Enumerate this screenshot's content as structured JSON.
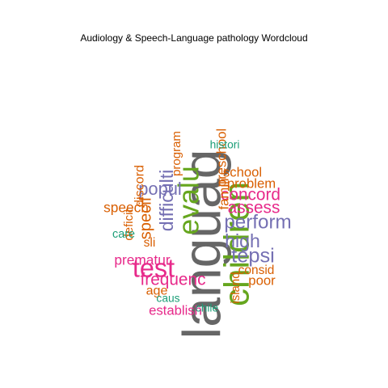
{
  "title": "Audiology & Speech-Language pathology  Wordcloud",
  "colors": {
    "grey": "#666666",
    "green": "#66a61e",
    "magenta": "#e7298a",
    "purple": "#7570b3",
    "orange": "#d95f02",
    "teal": "#1b9e77"
  },
  "chart_data": {
    "type": "wordcloud",
    "title": "Audiology & Speech-Language pathology  Wordcloud",
    "words": [
      {
        "text": "languag",
        "weight": 1.0,
        "color": "grey"
      },
      {
        "text": "children",
        "weight": 0.62,
        "color": "green"
      },
      {
        "text": "evalu",
        "weight": 0.48,
        "color": "green"
      },
      {
        "text": "test",
        "weight": 0.42,
        "color": "magenta"
      },
      {
        "text": "tepsi",
        "weight": 0.3,
        "color": "purple"
      },
      {
        "text": "perform",
        "weight": 0.28,
        "color": "purple"
      },
      {
        "text": "high",
        "weight": 0.26,
        "color": "purple"
      },
      {
        "text": "difficulti",
        "weight": 0.26,
        "color": "purple"
      },
      {
        "text": "popul",
        "weight": 0.24,
        "color": "purple"
      },
      {
        "text": "frequenc",
        "weight": 0.22,
        "color": "magenta"
      },
      {
        "text": "assess",
        "weight": 0.22,
        "color": "magenta"
      },
      {
        "text": "concord",
        "weight": 0.22,
        "color": "magenta"
      },
      {
        "text": "specif",
        "weight": 0.21,
        "color": "orange"
      },
      {
        "text": "prematur",
        "weight": 0.16,
        "color": "magenta"
      },
      {
        "text": "speech",
        "weight": 0.16,
        "color": "orange"
      },
      {
        "text": "establish",
        "weight": 0.15,
        "color": "magenta"
      },
      {
        "text": "school",
        "weight": 0.15,
        "color": "orange"
      },
      {
        "text": "problem",
        "weight": 0.15,
        "color": "orange"
      },
      {
        "text": "famili",
        "weight": 0.15,
        "color": "orange"
      },
      {
        "text": "poor",
        "weight": 0.15,
        "color": "orange"
      },
      {
        "text": "consid",
        "weight": 0.13,
        "color": "orange"
      },
      {
        "text": "preschool",
        "weight": 0.15,
        "color": "orange"
      },
      {
        "text": "discord",
        "weight": 0.14,
        "color": "orange"
      },
      {
        "text": "age",
        "weight": 0.14,
        "color": "orange"
      },
      {
        "text": "sli",
        "weight": 0.13,
        "color": "orange"
      },
      {
        "text": "deficit",
        "weight": 0.12,
        "color": "orange"
      },
      {
        "text": "program",
        "weight": 0.12,
        "color": "orange"
      },
      {
        "text": "island",
        "weight": 0.12,
        "color": "orange"
      },
      {
        "text": "care",
        "weight": 0.11,
        "color": "teal"
      },
      {
        "text": "histori",
        "weight": 0.1,
        "color": "teal"
      },
      {
        "text": "caus",
        "weight": 0.1,
        "color": "teal"
      },
      {
        "text": "chile",
        "weight": 0.1,
        "color": "teal"
      }
    ]
  }
}
